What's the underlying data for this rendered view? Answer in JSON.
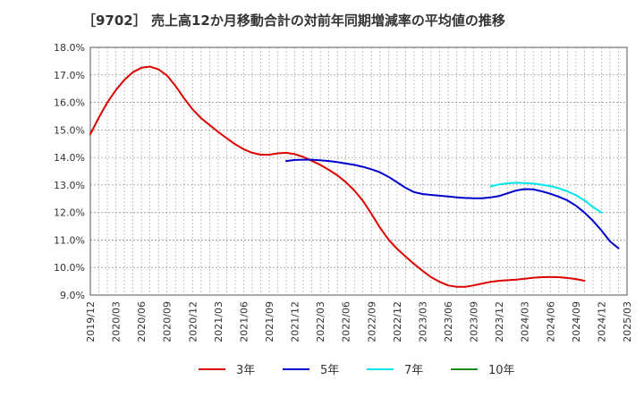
{
  "chart_data": {
    "type": "line",
    "title": "［9702］ 売上高12か月移動合計の対前年同期増減率の平均値の推移",
    "xlabel": "",
    "ylabel": "",
    "ylim": [
      9.0,
      18.0
    ],
    "y_ticks": [
      "9.0%",
      "10.0%",
      "11.0%",
      "12.0%",
      "13.0%",
      "14.0%",
      "15.0%",
      "16.0%",
      "17.0%",
      "18.0%"
    ],
    "x_ticks": [
      "2019/12",
      "2020/03",
      "2020/06",
      "2020/09",
      "2020/12",
      "2021/03",
      "2021/06",
      "2021/09",
      "2021/12",
      "2022/03",
      "2022/06",
      "2022/09",
      "2022/12",
      "2023/03",
      "2023/06",
      "2023/09",
      "2023/12",
      "2024/03",
      "2024/06",
      "2024/09",
      "2024/12",
      "2025/03"
    ],
    "grid": true,
    "legend_position": "bottom",
    "series": [
      {
        "name": "3年",
        "color": "#dd0000",
        "start": "2019/12",
        "values": [
          14.85,
          15.45,
          16.0,
          16.45,
          16.82,
          17.1,
          17.26,
          17.3,
          17.2,
          16.98,
          16.6,
          16.15,
          15.75,
          15.43,
          15.18,
          14.93,
          14.7,
          14.48,
          14.3,
          14.17,
          14.1,
          14.1,
          14.15,
          14.17,
          14.12,
          14.02,
          13.88,
          13.73,
          13.55,
          13.35,
          13.1,
          12.8,
          12.42,
          11.95,
          11.45,
          11.02,
          10.68,
          10.4,
          10.13,
          9.88,
          9.65,
          9.48,
          9.35,
          9.3,
          9.3,
          9.35,
          9.42,
          9.48,
          9.52,
          9.54,
          9.56,
          9.59,
          9.63,
          9.65,
          9.66,
          9.65,
          9.62,
          9.58,
          9.52
        ]
      },
      {
        "name": "5年",
        "color": "#0000cc",
        "start": "2021/11",
        "values": [
          13.87,
          13.91,
          13.92,
          13.92,
          13.9,
          13.87,
          13.83,
          13.78,
          13.73,
          13.66,
          13.57,
          13.46,
          13.3,
          13.1,
          12.9,
          12.74,
          12.67,
          12.64,
          12.61,
          12.58,
          12.55,
          12.53,
          12.52,
          12.52,
          12.55,
          12.6,
          12.7,
          12.8,
          12.85,
          12.84,
          12.77,
          12.68,
          12.57,
          12.44,
          12.25,
          12.0,
          11.7,
          11.35,
          10.95,
          10.7
        ]
      },
      {
        "name": "7年",
        "color": "#00e5ee",
        "start": "2023/11",
        "values": [
          12.95,
          13.02,
          13.06,
          13.08,
          13.07,
          13.05,
          13.01,
          12.96,
          12.88,
          12.77,
          12.63,
          12.44,
          12.2,
          12.0
        ]
      },
      {
        "name": "10年",
        "color": "#228b22",
        "start": "",
        "values": []
      }
    ]
  }
}
